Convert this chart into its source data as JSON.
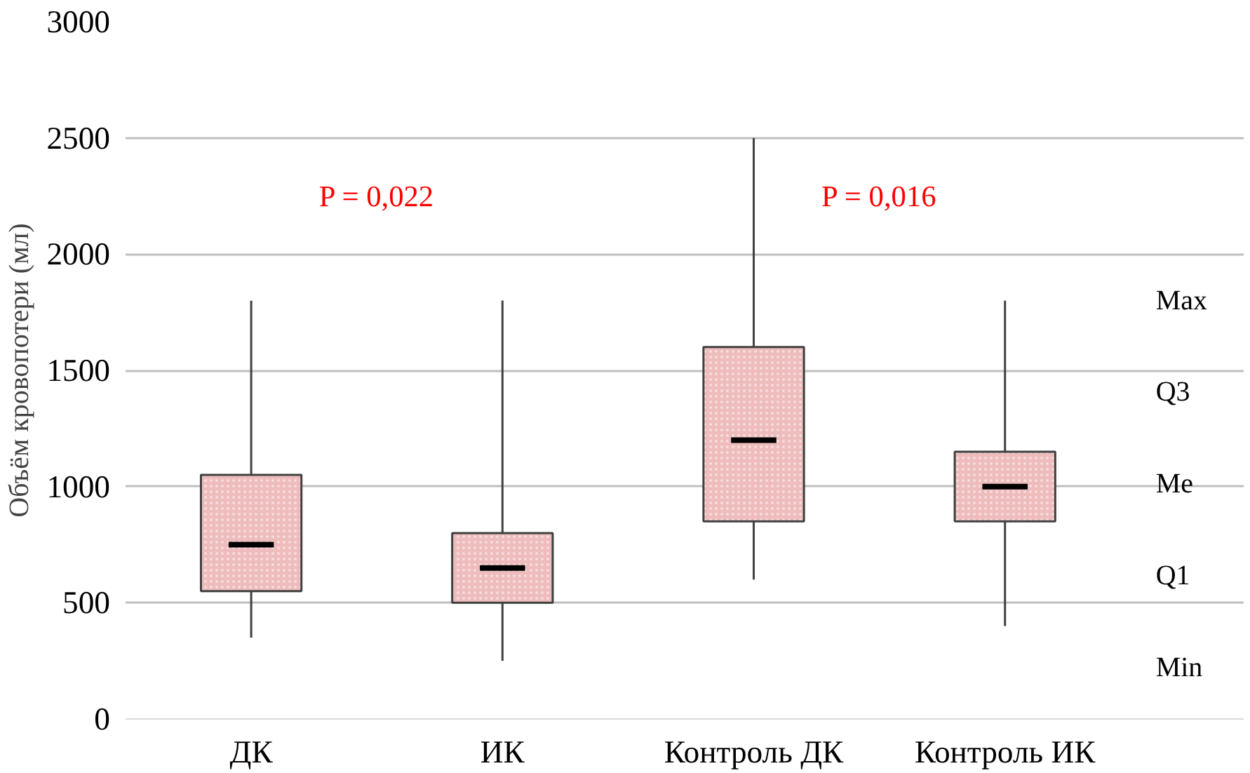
{
  "chart_data": {
    "type": "box",
    "ylabel": "Объём кровопотери (мл)",
    "categories": [
      "ДК",
      "ИК",
      "Контроль ДК",
      "Контроль ИК"
    ],
    "boxes": [
      {
        "low": 350,
        "q1": 550,
        "median": 750,
        "q3": 1050,
        "high": 1800
      },
      {
        "low": 250,
        "q1": 500,
        "median": 650,
        "q3": 800,
        "high": 1800
      },
      {
        "low": 600,
        "q1": 850,
        "median": 1200,
        "q3": 1600,
        "high": 2500
      },
      {
        "low": 400,
        "q1": 850,
        "median": 1000,
        "q3": 1150,
        "high": 1800
      }
    ],
    "color": "#eebcbc",
    "ylim": [
      0,
      3000
    ],
    "yticks": [
      0,
      500,
      1000,
      1500,
      2000,
      2500,
      3000
    ],
    "grid": "y",
    "annotations": [
      "P = 0,022",
      "P = 0,016",
      "Max",
      "Q3",
      "Me",
      "Q1",
      "Min"
    ]
  }
}
